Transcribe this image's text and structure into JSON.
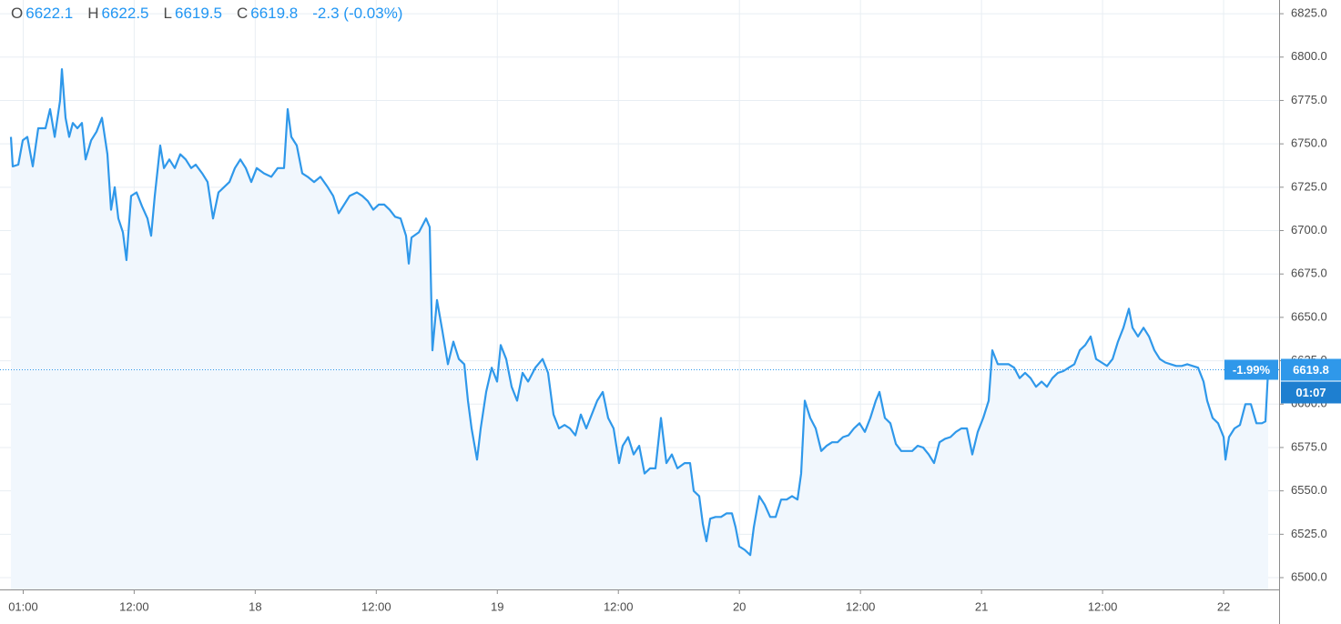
{
  "chart_data": {
    "type": "area",
    "header": {
      "items": [
        {
          "label": "O",
          "value": 6622.1
        },
        {
          "label": "H",
          "value": 6622.5
        },
        {
          "label": "L",
          "value": 6619.5
        },
        {
          "label": "C",
          "value": 6619.8
        }
      ],
      "change": "-2.3 (-0.03%)"
    },
    "price_line": {
      "value": 6619.8,
      "change_label": "-1.99%",
      "countdown": "01:07"
    },
    "color": "#2f98ea",
    "fill": "#f1f7fd",
    "grid": true,
    "xlim": [
      -1.3,
      125.5
    ],
    "ylim": [
      6493.2,
      6832.9
    ],
    "xticks": [
      {
        "value": 1,
        "label": "01:00"
      },
      {
        "value": 12,
        "label": "12:00"
      },
      {
        "value": 24,
        "label": "18"
      },
      {
        "value": 36,
        "label": "12:00"
      },
      {
        "value": 48,
        "label": "19"
      },
      {
        "value": 60,
        "label": "12:00"
      },
      {
        "value": 72,
        "label": "20"
      },
      {
        "value": 84,
        "label": "12:00"
      },
      {
        "value": 96,
        "label": "21"
      },
      {
        "value": 108,
        "label": "12:00"
      },
      {
        "value": 120,
        "label": "22"
      }
    ],
    "yticks": [
      {
        "value": 6500,
        "label": "6500.0"
      },
      {
        "value": 6525,
        "label": "6525.0"
      },
      {
        "value": 6550,
        "label": "6550.0"
      },
      {
        "value": 6575,
        "label": "6575.0"
      },
      {
        "value": 6600,
        "label": "6600.0"
      },
      {
        "value": 6625,
        "label": "6625.0"
      },
      {
        "value": 6650,
        "label": "6650.0"
      },
      {
        "value": 6675,
        "label": "6675.0"
      },
      {
        "value": 6700,
        "label": "6700.0"
      },
      {
        "value": 6725,
        "label": "6725.0"
      },
      {
        "value": 6750,
        "label": "6750.0"
      },
      {
        "value": 6775,
        "label": "6775.0"
      },
      {
        "value": 6800,
        "label": "6800.0"
      },
      {
        "value": 6825,
        "label": "6825.0"
      }
    ],
    "x": [
      -0.22,
      -0.04,
      0.51,
      0.96,
      1.41,
      1.95,
      2.49,
      3.21,
      3.66,
      4.12,
      4.66,
      4.84,
      5.2,
      5.56,
      5.92,
      6.37,
      6.82,
      7.18,
      7.73,
      8.27,
      8.81,
      9.35,
      9.71,
      10.07,
      10.43,
      10.88,
      11.24,
      11.7,
      12.24,
      12.78,
      13.32,
      13.68,
      14.04,
      14.58,
      14.95,
      15.49,
      16.03,
      16.57,
      17.11,
      17.65,
      18.1,
      18.74,
      19.28,
      19.82,
      20.36,
      20.9,
      21.44,
      21.98,
      22.53,
      23.07,
      23.61,
      24.15,
      24.87,
      25.59,
      26.23,
      26.86,
      27.22,
      27.58,
      28.12,
      28.66,
      29.2,
      29.84,
      30.47,
      31.19,
      31.73,
      32.27,
      32.81,
      33.36,
      34.08,
      34.62,
      35.16,
      35.7,
      36.24,
      36.79,
      37.33,
      37.87,
      38.41,
      38.95,
      39.22,
      39.49,
      40.22,
      40.94,
      41.3,
      41.57,
      42.02,
      42.56,
      43.1,
      43.64,
      44.19,
      44.73,
      45.09,
      45.45,
      45.99,
      46.35,
      46.89,
      47.44,
      47.98,
      48.34,
      48.88,
      49.42,
      49.96,
      50.5,
      51.05,
      51.77,
      52.49,
      53.03,
      53.57,
      54.11,
      54.66,
      55.2,
      55.74,
      56.28,
      56.82,
      57.36,
      57.9,
      58.45,
      58.99,
      59.53,
      60.07,
      60.43,
      60.97,
      61.51,
      62.06,
      62.6,
      63.14,
      63.68,
      64.22,
      64.76,
      65.3,
      65.85,
      66.57,
      67.11,
      67.47,
      68.01,
      68.37,
      68.73,
      69.1,
      69.64,
      70.18,
      70.72,
      71.26,
      71.62,
      71.98,
      72.52,
      73.07,
      73.43,
      73.97,
      74.51,
      75.05,
      75.59,
      76.13,
      76.68,
      77.22,
      77.76,
      78.12,
      78.48,
      79.02,
      79.56,
      80.11,
      80.65,
      81.19,
      81.73,
      82.27,
      82.81,
      83.35,
      83.9,
      84.44,
      84.98,
      85.52,
      85.88,
      86.42,
      86.96,
      87.51,
      88.05,
      88.59,
      89.13,
      89.67,
      90.21,
      90.76,
      91.3,
      91.84,
      92.38,
      92.92,
      93.46,
      94.0,
      94.55,
      95.09,
      95.63,
      96.17,
      96.71,
      97.07,
      97.61,
      98.16,
      98.7,
      99.24,
      99.78,
      100.32,
      100.86,
      101.4,
      101.95,
      102.49,
      103.03,
      103.57,
      104.11,
      104.65,
      105.2,
      105.74,
      106.28,
      106.82,
      107.36,
      107.9,
      108.44,
      108.99,
      109.53,
      110.07,
      110.61,
      110.97,
      111.51,
      112.06,
      112.6,
      113.14,
      113.68,
      114.22,
      114.76,
      115.3,
      115.85,
      116.39,
      116.93,
      117.47,
      118.01,
      118.37,
      118.91,
      119.45,
      120.0,
      120.18,
      120.54,
      121.08,
      121.62,
      122.16,
      122.7,
      123.25,
      123.79,
      124.15,
      124.42
    ],
    "values": [
      6754,
      6737,
      6738,
      6752,
      6754,
      6737,
      6759,
      6759,
      6770,
      6754,
      6775,
      6793,
      6765,
      6754,
      6762,
      6759,
      6762,
      6741,
      6752,
      6757,
      6765,
      6744,
      6712,
      6725,
      6707,
      6699,
      6683,
      6720,
      6722,
      6714,
      6707,
      6697,
      6720,
      6749,
      6736,
      6741,
      6736,
      6744,
      6741,
      6736,
      6738,
      6733,
      6728,
      6707,
      6722,
      6725,
      6728,
      6736,
      6741,
      6736,
      6728,
      6736,
      6733,
      6731,
      6736,
      6736,
      6770,
      6754,
      6749,
      6733,
      6731,
      6728,
      6731,
      6725,
      6720,
      6710,
      6715,
      6720,
      6722,
      6720,
      6717,
      6712,
      6715,
      6715,
      6712,
      6708,
      6707,
      6697,
      6681,
      6696,
      6699,
      6707,
      6702,
      6631,
      6660,
      6642,
      6623,
      6636,
      6626,
      6623,
      6602,
      6586,
      6568,
      6586,
      6607,
      6621,
      6613,
      6634,
      6626,
      6610,
      6602,
      6618,
      6613,
      6621,
      6626,
      6618,
      6594,
      6586,
      6588,
      6586,
      6582,
      6594,
      6586,
      6594,
      6602,
      6607,
      6592,
      6586,
      6566,
      6576,
      6581,
      6571,
      6576,
      6560,
      6563,
      6563,
      6592,
      6566,
      6571,
      6563,
      6566,
      6566,
      6550,
      6547,
      6531,
      6521,
      6534,
      6535,
      6535,
      6537,
      6537,
      6529,
      6518,
      6516,
      6513,
      6529,
      6547,
      6542,
      6535,
      6535,
      6545,
      6545,
      6547,
      6545,
      6560,
      6602,
      6592,
      6586,
      6573,
      6576,
      6578,
      6578,
      6581,
      6582,
      6586,
      6589,
      6584,
      6592,
      6602,
      6607,
      6592,
      6589,
      6577,
      6573,
      6573,
      6573,
      6576,
      6575,
      6571,
      6566,
      6578,
      6580,
      6581,
      6584,
      6586,
      6586,
      6571,
      6584,
      6592,
      6602,
      6631,
      6623,
      6623,
      6623,
      6621,
      6615,
      6618,
      6615,
      6610,
      6613,
      6610,
      6615,
      6618,
      6619,
      6621,
      6623,
      6631,
      6634,
      6639,
      6626,
      6624,
      6622,
      6626,
      6636,
      6644,
      6655,
      6644,
      6639,
      6644,
      6639,
      6631,
      6626,
      6624,
      6623,
      6622,
      6622,
      6623,
      6622,
      6621,
      6613,
      6602,
      6592,
      6589,
      6581,
      6568,
      6581,
      6586,
      6588,
      6600,
      6600,
      6589,
      6589,
      6590,
      6619.8
    ]
  }
}
